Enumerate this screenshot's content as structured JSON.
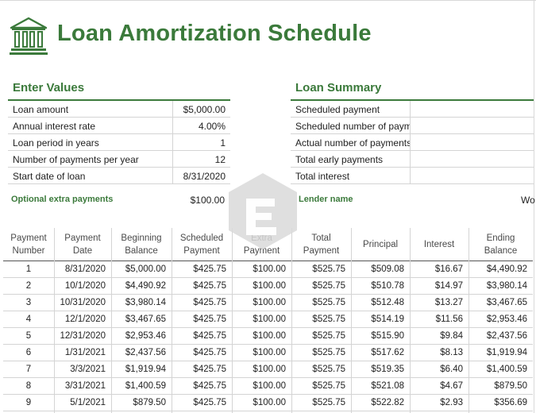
{
  "title": "Loan Amortization Schedule",
  "brand_color": "#3b7a3b",
  "icons": {
    "logo": "bank-building-icon",
    "watermark": "watermark-logo-icon"
  },
  "enter_values": {
    "heading": "Enter Values",
    "rows": [
      {
        "label": "Loan amount",
        "value": "$5,000.00"
      },
      {
        "label": "Annual interest rate",
        "value": "4.00%"
      },
      {
        "label": "Loan period in years",
        "value": "1"
      },
      {
        "label": "Number of payments per year",
        "value": "12"
      },
      {
        "label": "Start date of loan",
        "value": "8/31/2020"
      }
    ],
    "optional_label": "Optional extra payments",
    "optional_value": "$100.00"
  },
  "loan_summary": {
    "heading": "Loan Summary",
    "rows": [
      {
        "label": "Scheduled payment"
      },
      {
        "label": "Scheduled number of paym"
      },
      {
        "label": "Actual number of payments"
      },
      {
        "label": "Total early payments"
      },
      {
        "label": "Total interest"
      }
    ],
    "lender_label": "Lender name",
    "lender_value": "Wo"
  },
  "table": {
    "headers": [
      [
        "Payment",
        "Number"
      ],
      [
        "Payment",
        "Date"
      ],
      [
        "Beginning",
        "Balance"
      ],
      [
        "Scheduled",
        "Payment"
      ],
      [
        "Extra",
        "Payment"
      ],
      [
        "Total",
        "Payment"
      ],
      [
        "Principal"
      ],
      [
        "Interest"
      ],
      [
        "Ending",
        "Balance"
      ]
    ],
    "rows": [
      [
        "1",
        "8/31/2020",
        "$5,000.00",
        "$425.75",
        "$100.00",
        "$525.75",
        "$509.08",
        "$16.67",
        "$4,490.92"
      ],
      [
        "2",
        "10/1/2020",
        "$4,490.92",
        "$425.75",
        "$100.00",
        "$525.75",
        "$510.78",
        "$14.97",
        "$3,980.14"
      ],
      [
        "3",
        "10/31/2020",
        "$3,980.14",
        "$425.75",
        "$100.00",
        "$525.75",
        "$512.48",
        "$13.27",
        "$3,467.65"
      ],
      [
        "4",
        "12/1/2020",
        "$3,467.65",
        "$425.75",
        "$100.00",
        "$525.75",
        "$514.19",
        "$11.56",
        "$2,953.46"
      ],
      [
        "5",
        "12/31/2020",
        "$2,953.46",
        "$425.75",
        "$100.00",
        "$525.75",
        "$515.90",
        "$9.84",
        "$2,437.56"
      ],
      [
        "6",
        "1/31/2021",
        "$2,437.56",
        "$425.75",
        "$100.00",
        "$525.75",
        "$517.62",
        "$8.13",
        "$1,919.94"
      ],
      [
        "7",
        "3/3/2021",
        "$1,919.94",
        "$425.75",
        "$100.00",
        "$525.75",
        "$519.35",
        "$6.40",
        "$1,400.59"
      ],
      [
        "8",
        "3/31/2021",
        "$1,400.59",
        "$425.75",
        "$100.00",
        "$525.75",
        "$521.08",
        "$4.67",
        "$879.50"
      ],
      [
        "9",
        "5/1/2021",
        "$879.50",
        "$425.75",
        "$100.00",
        "$525.75",
        "$522.82",
        "$2.93",
        "$356.69"
      ]
    ]
  }
}
